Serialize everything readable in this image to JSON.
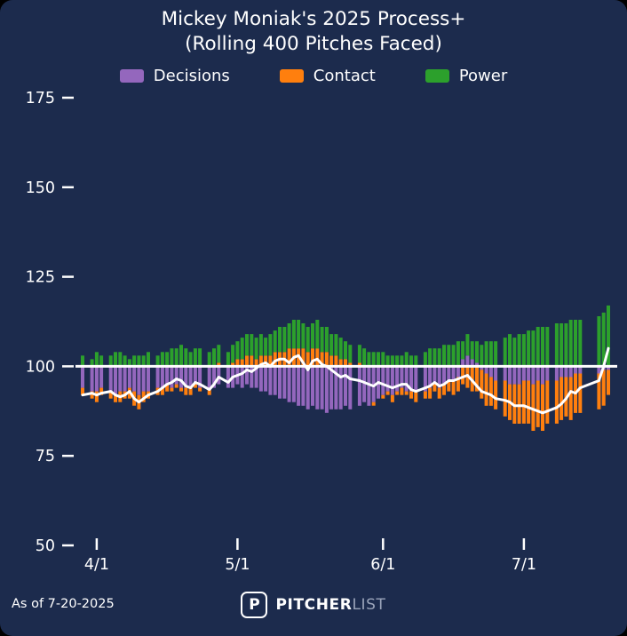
{
  "title": {
    "line1": "Mickey Moniak's 2025 Process+",
    "line2": "(Rolling 400 Pitches Faced)"
  },
  "footer": {
    "as_of": "As of 7-20-2025",
    "logo_letter": "P",
    "brand_bold": "PITCHER",
    "brand_light": "LIST"
  },
  "colors": {
    "background": "#1c2b4d",
    "text": "#ffffff",
    "decisions": "#9467bd",
    "contact": "#ff7f0e",
    "power": "#2ca02c",
    "baseline": "#ffffff",
    "trend_line": "#ffffff",
    "brand_muted": "#9aa4ba"
  },
  "chart_data": {
    "type": "bar",
    "title": "Mickey Moniak's 2025 Process+ (Rolling 400 Pitches Faced)",
    "xlabel": "",
    "ylabel": "",
    "ylim": [
      50,
      175
    ],
    "baseline": 100,
    "grid": false,
    "legend_position": "top",
    "yticks": [
      50,
      75,
      100,
      125,
      150,
      175
    ],
    "xticks": [
      "4/1",
      "5/1",
      "6/1",
      "7/1"
    ],
    "dates": [
      "3/29",
      "3/31",
      "4/1",
      "4/2",
      "4/4",
      "4/5",
      "4/6",
      "4/7",
      "4/8",
      "4/9",
      "4/10",
      "4/11",
      "4/12",
      "4/14",
      "4/15",
      "4/16",
      "4/17",
      "4/18",
      "4/19",
      "4/20",
      "4/21",
      "4/22",
      "4/23",
      "4/25",
      "4/26",
      "4/27",
      "4/29",
      "4/30",
      "5/1",
      "5/2",
      "5/3",
      "5/4",
      "5/5",
      "5/6",
      "5/7",
      "5/8",
      "5/9",
      "5/10",
      "5/11",
      "5/12",
      "5/13",
      "5/14",
      "5/15",
      "5/16",
      "5/17",
      "5/18",
      "5/19",
      "5/20",
      "5/21",
      "5/22",
      "5/23",
      "5/24",
      "5/25",
      "5/27",
      "5/28",
      "5/29",
      "5/30",
      "5/31",
      "6/1",
      "6/2",
      "6/3",
      "6/4",
      "6/5",
      "6/6",
      "6/7",
      "6/8",
      "6/10",
      "6/11",
      "6/12",
      "6/13",
      "6/14",
      "6/15",
      "6/16",
      "6/17",
      "6/18",
      "6/19",
      "6/20",
      "6/21",
      "6/22",
      "6/23",
      "6/24",
      "6/25",
      "6/27",
      "6/28",
      "6/29",
      "6/30",
      "7/1",
      "7/2",
      "7/3",
      "7/4",
      "7/5",
      "7/6",
      "7/8",
      "7/9",
      "7/10",
      "7/11",
      "7/12",
      "7/13",
      "7/17",
      "7/18",
      "7/19"
    ],
    "series": [
      {
        "key": "decisions",
        "name": "Decisions",
        "color": "#9467bd",
        "values": [
          94,
          93,
          93,
          94,
          93,
          92,
          93,
          93,
          94,
          93,
          92,
          93,
          93,
          94,
          94,
          95,
          94,
          95,
          94,
          94,
          94,
          95,
          94,
          94,
          94,
          95,
          94,
          94,
          95,
          94,
          95,
          94,
          94,
          93,
          93,
          92,
          92,
          91,
          91,
          90,
          90,
          89,
          89,
          88,
          89,
          88,
          88,
          87,
          88,
          88,
          88,
          89,
          88,
          89,
          90,
          89,
          90,
          91,
          92,
          93,
          92,
          93,
          94,
          93,
          93,
          93,
          93,
          94,
          95,
          94,
          95,
          96,
          96,
          97,
          102,
          103,
          102,
          101,
          99,
          98,
          97,
          96,
          96,
          95,
          95,
          95,
          96,
          96,
          95,
          96,
          95,
          96,
          96,
          97,
          97,
          97,
          98,
          98,
          98,
          99,
          99
        ]
      },
      {
        "key": "contact",
        "name": "Contact",
        "color": "#ff7f0e",
        "values": [
          98,
          98,
          97,
          98,
          98,
          98,
          97,
          98,
          97,
          96,
          96,
          97,
          98,
          98,
          98,
          98,
          99,
          99,
          99,
          98,
          98,
          99,
          99,
          98,
          100,
          101,
          100,
          101,
          102,
          102,
          103,
          103,
          102,
          103,
          103,
          103,
          104,
          104,
          104,
          105,
          105,
          105,
          105,
          104,
          105,
          105,
          104,
          104,
          103,
          103,
          102,
          102,
          101,
          101,
          100,
          100,
          99,
          100,
          99,
          99,
          98,
          99,
          98,
          99,
          98,
          97,
          98,
          97,
          98,
          97,
          97,
          97,
          96,
          96,
          95,
          94,
          93,
          93,
          92,
          91,
          92,
          92,
          90,
          90,
          89,
          89,
          88,
          88,
          87,
          87,
          87,
          88,
          88,
          88,
          89,
          88,
          89,
          89,
          90,
          90,
          93
        ]
      },
      {
        "key": "power",
        "name": "Power",
        "color": "#2ca02c",
        "values": [
          103,
          102,
          104,
          103,
          103,
          104,
          104,
          103,
          102,
          103,
          103,
          103,
          104,
          103,
          104,
          104,
          105,
          105,
          106,
          105,
          104,
          105,
          105,
          104,
          105,
          105,
          104,
          105,
          105,
          106,
          106,
          106,
          106,
          106,
          105,
          106,
          106,
          107,
          107,
          107,
          108,
          108,
          107,
          107,
          107,
          108,
          107,
          107,
          106,
          106,
          106,
          105,
          105,
          105,
          105,
          104,
          104,
          104,
          104,
          103,
          103,
          103,
          103,
          104,
          103,
          103,
          104,
          105,
          105,
          105,
          106,
          106,
          106,
          107,
          105,
          106,
          105,
          106,
          106,
          107,
          107,
          107,
          108,
          109,
          108,
          109,
          109,
          110,
          110,
          111,
          111,
          111,
          112,
          112,
          112,
          113,
          113,
          113,
          114,
          115,
          117
        ]
      }
    ],
    "line": {
      "name": "Rolling Process+",
      "color": "#ffffff",
      "values": [
        92,
        92.5,
        92,
        92.5,
        93,
        92,
        91.5,
        92,
        93,
        91,
        90,
        91,
        92,
        93,
        94,
        95,
        95.5,
        96.5,
        96,
        94.5,
        94,
        95.5,
        95,
        93.5,
        95,
        97,
        95.5,
        97,
        97.5,
        98,
        99,
        98.5,
        99.5,
        100.5,
        101,
        100,
        101.5,
        102,
        102,
        101,
        102.5,
        103,
        101,
        99,
        101.5,
        102,
        100.5,
        100,
        99,
        98,
        97,
        97.5,
        96.5,
        96,
        95.5,
        95,
        94.5,
        95.5,
        95,
        94.5,
        94,
        94.5,
        95,
        95,
        93.5,
        93,
        94,
        94.5,
        95.5,
        94.5,
        95,
        96,
        96,
        96.5,
        97,
        97.5,
        96,
        94.5,
        93,
        92.5,
        92,
        91,
        90.5,
        90,
        89,
        89,
        89,
        88.5,
        88,
        87.5,
        87,
        87.5,
        88.5,
        89.5,
        91,
        93,
        92.5,
        94,
        96,
        100,
        105
      ]
    }
  }
}
